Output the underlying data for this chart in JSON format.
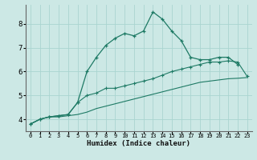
{
  "xlabel": "Humidex (Indice chaleur)",
  "bg_color": "#cce8e5",
  "grid_color": "#aad4d0",
  "line_color": "#1e7a65",
  "x_values": [
    0,
    1,
    2,
    3,
    4,
    5,
    6,
    7,
    8,
    9,
    10,
    11,
    12,
    13,
    14,
    15,
    16,
    17,
    18,
    19,
    20,
    21,
    22,
    23
  ],
  "curve1": [
    3.8,
    4.0,
    4.1,
    4.15,
    4.2,
    4.7,
    6.0,
    6.6,
    7.1,
    7.4,
    7.6,
    7.5,
    7.7,
    8.5,
    8.2,
    7.7,
    7.3,
    6.6,
    6.5,
    6.5,
    6.6,
    6.6,
    6.3,
    null
  ],
  "curve2": [
    3.8,
    4.0,
    4.1,
    4.15,
    4.2,
    4.7,
    5.0,
    5.1,
    5.3,
    5.3,
    5.4,
    5.5,
    5.6,
    5.7,
    5.85,
    6.0,
    6.1,
    6.2,
    6.3,
    6.4,
    6.4,
    6.45,
    6.4,
    5.8
  ],
  "curve3": [
    3.8,
    4.0,
    4.1,
    4.1,
    4.15,
    4.2,
    4.3,
    4.45,
    4.55,
    4.65,
    4.75,
    4.85,
    4.95,
    5.05,
    5.15,
    5.25,
    5.35,
    5.45,
    5.55,
    5.6,
    5.65,
    5.7,
    5.72,
    5.75
  ],
  "ylim": [
    3.5,
    8.8
  ],
  "xlim": [
    -0.5,
    23.5
  ],
  "yticks": [
    4,
    5,
    6,
    7,
    8
  ],
  "xticks": [
    0,
    1,
    2,
    3,
    4,
    5,
    6,
    7,
    8,
    9,
    10,
    11,
    12,
    13,
    14,
    15,
    16,
    17,
    18,
    19,
    20,
    21,
    22,
    23
  ]
}
